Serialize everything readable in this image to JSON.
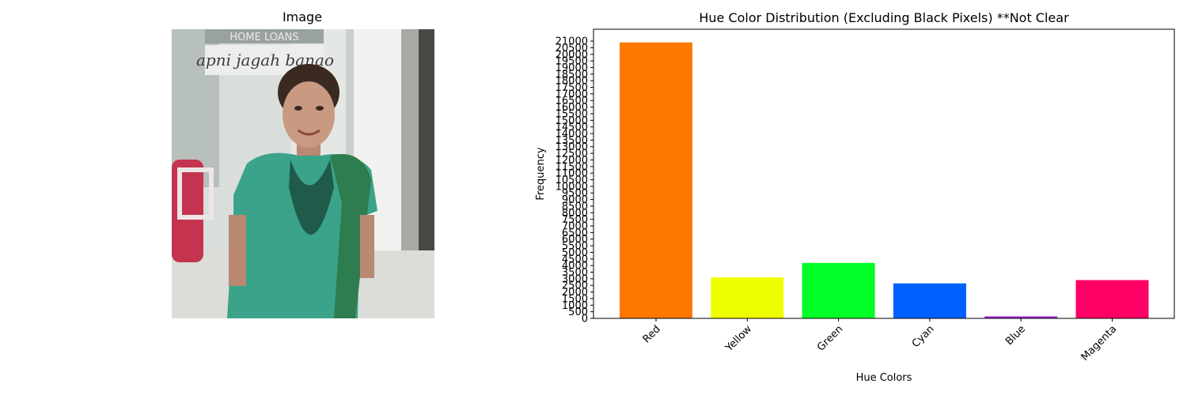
{
  "figure": {
    "image_panel": {
      "title": "Image",
      "photo_text": "apni jagah banao",
      "photo_sign_text": "HOME LOANS"
    }
  },
  "colors": {
    "axis": "#000000",
    "background": "#ffffff"
  },
  "chart_data": {
    "type": "bar",
    "title": "Hue Color Distribution (Excluding Black Pixels) **Not Clear",
    "xlabel": "Hue Colors",
    "ylabel": "Frequency",
    "categories": [
      "Red",
      "Yellow",
      "Green",
      "Cyan",
      "Blue",
      "Magenta"
    ],
    "values": [
      20900,
      3100,
      4200,
      2650,
      150,
      2900
    ],
    "bar_colors": [
      "#ff7800",
      "#eeff00",
      "#00ff26",
      "#005fff",
      "#9a22d3",
      "#ff0066"
    ],
    "ylim": [
      0,
      21900
    ],
    "ytick_step": 500,
    "ytick_max": 21000,
    "xtick_rotation": 45,
    "grid": false,
    "legend": "none"
  }
}
